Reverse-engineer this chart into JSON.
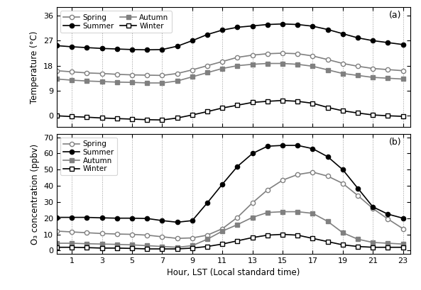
{
  "hours": [
    0,
    1,
    2,
    3,
    4,
    5,
    6,
    7,
    8,
    9,
    10,
    11,
    12,
    13,
    14,
    15,
    16,
    17,
    18,
    19,
    20,
    21,
    22,
    23
  ],
  "temp_spring": [
    16.2,
    15.8,
    15.4,
    15.2,
    14.9,
    14.7,
    14.6,
    14.5,
    15.2,
    16.5,
    18.0,
    19.5,
    21.0,
    21.8,
    22.3,
    22.5,
    22.3,
    21.5,
    20.2,
    18.8,
    17.8,
    17.0,
    16.6,
    16.2
  ],
  "temp_summer": [
    25.2,
    24.8,
    24.5,
    24.2,
    24.0,
    23.8,
    23.7,
    23.8,
    25.0,
    27.0,
    29.2,
    30.8,
    31.8,
    32.3,
    32.8,
    33.0,
    32.8,
    32.2,
    31.0,
    29.5,
    28.0,
    27.0,
    26.3,
    25.6
  ],
  "temp_autumn": [
    13.2,
    12.8,
    12.5,
    12.3,
    12.1,
    12.0,
    11.8,
    11.8,
    12.5,
    14.0,
    15.5,
    17.0,
    18.0,
    18.5,
    18.8,
    18.8,
    18.5,
    17.8,
    16.5,
    15.2,
    14.5,
    13.8,
    13.5,
    13.2
  ],
  "temp_winter": [
    0.0,
    -0.3,
    -0.5,
    -0.8,
    -1.0,
    -1.2,
    -1.4,
    -1.5,
    -0.8,
    0.3,
    1.5,
    2.8,
    3.8,
    4.8,
    5.2,
    5.5,
    5.2,
    4.5,
    3.0,
    1.8,
    1.0,
    0.3,
    0.0,
    -0.2
  ],
  "o3_spring": [
    12.0,
    11.5,
    11.0,
    10.5,
    10.2,
    10.0,
    9.5,
    8.5,
    7.5,
    7.8,
    9.5,
    13.5,
    20.5,
    29.5,
    37.5,
    43.5,
    47.0,
    48.5,
    46.0,
    41.5,
    34.0,
    26.0,
    19.5,
    13.5
  ],
  "o3_summer": [
    20.5,
    20.5,
    20.5,
    20.2,
    20.0,
    20.0,
    19.8,
    18.5,
    17.5,
    18.5,
    29.5,
    41.0,
    52.0,
    60.0,
    64.5,
    65.0,
    65.0,
    63.0,
    58.0,
    50.0,
    38.5,
    27.0,
    22.5,
    20.0
  ],
  "o3_autumn": [
    4.5,
    4.5,
    4.2,
    4.0,
    3.8,
    3.5,
    3.0,
    2.5,
    2.0,
    3.0,
    7.0,
    12.0,
    16.0,
    20.5,
    23.5,
    24.0,
    24.0,
    23.0,
    18.0,
    11.0,
    7.0,
    5.0,
    4.5,
    4.0
  ],
  "o3_winter": [
    2.0,
    2.0,
    1.8,
    1.5,
    1.5,
    1.3,
    1.0,
    1.0,
    1.0,
    1.5,
    2.5,
    4.0,
    6.0,
    8.0,
    9.5,
    10.0,
    9.5,
    7.5,
    5.5,
    3.5,
    2.5,
    2.0,
    2.0,
    2.0
  ],
  "temp_ylim": [
    -4,
    39
  ],
  "temp_yticks": [
    0,
    9,
    18,
    27,
    36
  ],
  "o3_ylim": [
    -2,
    72
  ],
  "o3_yticks": [
    0,
    10,
    20,
    30,
    40,
    50,
    60,
    70
  ],
  "xticks": [
    1,
    3,
    5,
    7,
    9,
    11,
    13,
    15,
    17,
    19,
    21,
    23
  ],
  "xlabel": "Hour, LST (Local standard time)",
  "ylabel_temp": "Temperature (°C)",
  "ylabel_o3": "O₃ concentration (ppbv)",
  "label_spring": "Spring",
  "label_summer": "Summer",
  "label_autumn": "Autumn",
  "label_winter": "Winter",
  "color_black": "#000000",
  "color_gray": "#808080",
  "linewidth": 1.2,
  "markersize": 4.5
}
